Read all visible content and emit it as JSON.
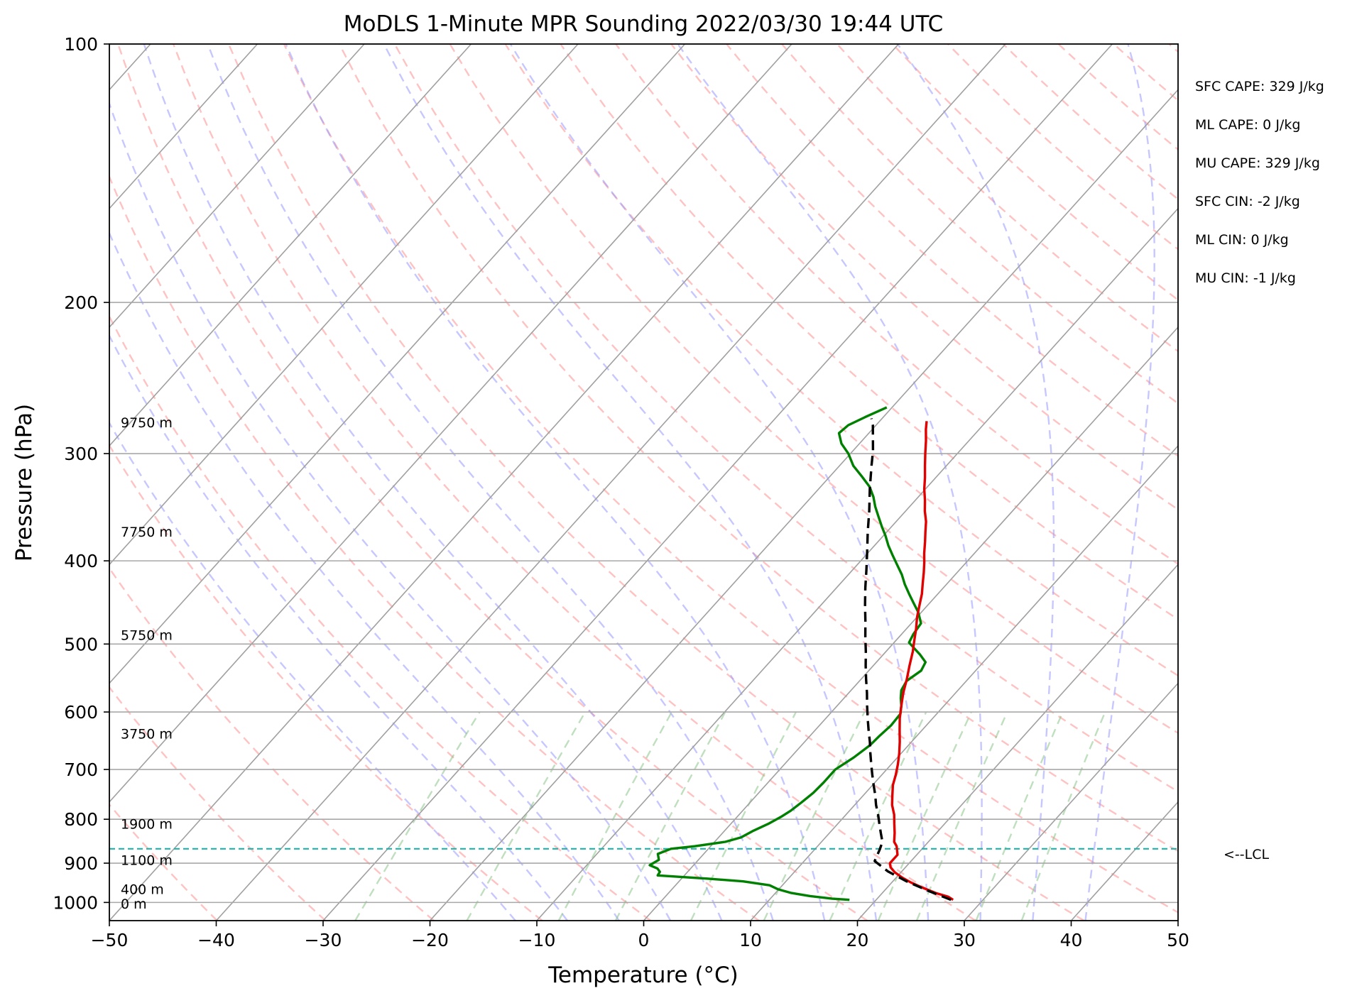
{
  "chart_data": {
    "type": "skew-t",
    "title": "MoDLS 1-Minute MPR Sounding 2022/03/30 19:44 UTC",
    "xlabel": "Temperature (°C)",
    "ylabel": "Pressure (hPa)",
    "xlim": [
      -50,
      50
    ],
    "ylim": [
      1050,
      100
    ],
    "x_ticks": [
      "−50",
      "−40",
      "−30",
      "−20",
      "−10",
      "0",
      "10",
      "20",
      "30",
      "40",
      "50"
    ],
    "y_ticks": [
      "100",
      "200",
      "300",
      "400",
      "500",
      "600",
      "700",
      "800",
      "900",
      "1000"
    ],
    "grid": true,
    "temperature_profile": {
      "color": "#e00000",
      "points": [
        [
          27.2,
          993
        ],
        [
          26.5,
          985
        ],
        [
          25,
          975
        ],
        [
          23.3,
          961
        ],
        [
          21.8,
          948
        ],
        [
          20.6,
          936
        ],
        [
          19.4,
          922
        ],
        [
          18.6,
          910
        ],
        [
          18.2,
          900
        ],
        [
          18.2,
          880
        ],
        [
          17.8,
          870
        ],
        [
          17.4,
          860
        ],
        [
          16.8,
          850
        ],
        [
          16.1,
          830
        ],
        [
          15.3,
          810
        ],
        [
          14.5,
          790
        ],
        [
          13.5,
          770
        ],
        [
          12.7,
          750
        ],
        [
          11.9,
          730
        ],
        [
          11.3,
          710
        ],
        [
          10.6,
          690
        ],
        [
          9.8,
          670
        ],
        [
          8.9,
          650
        ],
        [
          7.9,
          630
        ],
        [
          6.9,
          610
        ],
        [
          6.0,
          590
        ],
        [
          5.1,
          570
        ],
        [
          4.3,
          550
        ],
        [
          3.4,
          530
        ],
        [
          2.5,
          510
        ],
        [
          1.7,
          495
        ],
        [
          0.9,
          480
        ],
        [
          0,
          465
        ],
        [
          -0.8,
          450
        ],
        [
          -1.5,
          437
        ],
        [
          -2.3,
          425
        ],
        [
          -3.1,
          413
        ],
        [
          -3.9,
          402
        ],
        [
          -4.7,
          392
        ],
        [
          -5.6,
          380
        ],
        [
          -6.4,
          370
        ],
        [
          -7.2,
          360
        ],
        [
          -8.2,
          350
        ],
        [
          -9.1,
          340
        ],
        [
          -10.1,
          330
        ],
        [
          -11,
          320
        ],
        [
          -12,
          310
        ],
        [
          -13,
          300
        ],
        [
          -14,
          290
        ],
        [
          -15,
          281
        ],
        [
          -15.6,
          275
        ]
      ]
    },
    "dewpoint_profile": {
      "color": "#008000",
      "points": [
        [
          17.5,
          993
        ],
        [
          15.8,
          990
        ],
        [
          13.5,
          983
        ],
        [
          11.5,
          975
        ],
        [
          9.9,
          965
        ],
        [
          8.8,
          955
        ],
        [
          6,
          945
        ],
        [
          2.4,
          938
        ],
        [
          -2.5,
          930
        ],
        [
          -2.6,
          921
        ],
        [
          -3.1,
          913
        ],
        [
          -4.1,
          905
        ],
        [
          -3.7,
          892
        ],
        [
          -4.3,
          878
        ],
        [
          -3.5,
          866
        ],
        [
          -1.5,
          860
        ],
        [
          1,
          850
        ],
        [
          2.1,
          840
        ],
        [
          2.7,
          825
        ],
        [
          3.5,
          810
        ],
        [
          4.1,
          795
        ],
        [
          4.5,
          782
        ],
        [
          4.8,
          765
        ],
        [
          5.1,
          745
        ],
        [
          5.2,
          725
        ],
        [
          5.2,
          700
        ],
        [
          5.9,
          678
        ],
        [
          6.4,
          656
        ],
        [
          6.5,
          640
        ],
        [
          6.7,
          622
        ],
        [
          6.6,
          603
        ],
        [
          6.0,
          590
        ],
        [
          5.3,
          578
        ],
        [
          4.7,
          566
        ],
        [
          4.4,
          552
        ],
        [
          4.9,
          537
        ],
        [
          4.6,
          525
        ],
        [
          3.4,
          514
        ],
        [
          2.4,
          506
        ],
        [
          1.4,
          498
        ],
        [
          1.1,
          487
        ],
        [
          0.9,
          473
        ],
        [
          -0.3,
          459
        ],
        [
          -1.5,
          448
        ],
        [
          -2.7,
          437
        ],
        [
          -3.9,
          426
        ],
        [
          -5.0,
          415
        ],
        [
          -6.3,
          404
        ],
        [
          -7.5,
          394
        ],
        [
          -8.7,
          384
        ],
        [
          -9.8,
          374
        ],
        [
          -10.9,
          365
        ],
        [
          -12.1,
          355
        ],
        [
          -13.2,
          346
        ],
        [
          -14.2,
          337
        ],
        [
          -15.4,
          328
        ],
        [
          -17.0,
          319
        ],
        [
          -18.7,
          310
        ],
        [
          -20.2,
          300
        ],
        [
          -21.7,
          292
        ],
        [
          -22.8,
          284
        ],
        [
          -22.6,
          278
        ],
        [
          -21.7,
          272
        ],
        [
          -20.5,
          265
        ]
      ]
    },
    "parcel_profile": {
      "color": "#000000",
      "style": "dashed",
      "points": [
        [
          27.0,
          993
        ],
        [
          24.2,
          970
        ],
        [
          21.3,
          945
        ],
        [
          18.7,
          920
        ],
        [
          16.6,
          895
        ],
        [
          16.1,
          868
        ],
        [
          15.7,
          850
        ],
        [
          14.8,
          830
        ],
        [
          13.9,
          810
        ],
        [
          13.0,
          790
        ],
        [
          12.0,
          770
        ],
        [
          11.1,
          750
        ],
        [
          10.1,
          730
        ],
        [
          9.1,
          710
        ],
        [
          8.1,
          690
        ],
        [
          7.1,
          670
        ],
        [
          6.1,
          650
        ],
        [
          5.0,
          630
        ],
        [
          3.9,
          610
        ],
        [
          2.8,
          590
        ],
        [
          1.7,
          570
        ],
        [
          0.5,
          550
        ],
        [
          -0.7,
          530
        ],
        [
          -1.9,
          510
        ],
        [
          -3.2,
          490
        ],
        [
          -4.5,
          470
        ],
        [
          -5.9,
          450
        ],
        [
          -7.3,
          430
        ],
        [
          -8.7,
          410
        ],
        [
          -10.2,
          390
        ],
        [
          -11.8,
          370
        ],
        [
          -13.4,
          350
        ],
        [
          -15.2,
          330
        ],
        [
          -17.0,
          310
        ],
        [
          -18.1,
          298
        ],
        [
          -19.4,
          286
        ],
        [
          -20.3,
          278
        ],
        [
          -21.0,
          273
        ]
      ]
    },
    "lcl": {
      "pressure": 866,
      "label": "<--LCL",
      "color": "#20b2aa"
    },
    "height_labels": [
      {
        "text": "9750 m",
        "pressure": 276
      },
      {
        "text": "7750 m",
        "pressure": 370
      },
      {
        "text": "5750 m",
        "pressure": 488
      },
      {
        "text": "3750 m",
        "pressure": 636
      },
      {
        "text": "1900 m",
        "pressure": 810
      },
      {
        "text": "1100 m",
        "pressure": 892
      },
      {
        "text": "400 m",
        "pressure": 965
      },
      {
        "text": "0 m",
        "pressure": 1003
      }
    ],
    "indices": [
      "SFC CAPE: 329 J/kg",
      "ML CAPE: 0 J/kg",
      "MU CAPE: 329 J/kg",
      "SFC CIN: -2 J/kg",
      "ML CIN: 0 J/kg",
      "MU CIN: -1 J/kg"
    ],
    "background_lines": {
      "isotherm_color": "#a0a0a0",
      "dry_adiabat_color": "#ff9999",
      "moist_adiabat_color": "#9999ff",
      "mixing_ratio_color": "#7fbf7f"
    }
  }
}
